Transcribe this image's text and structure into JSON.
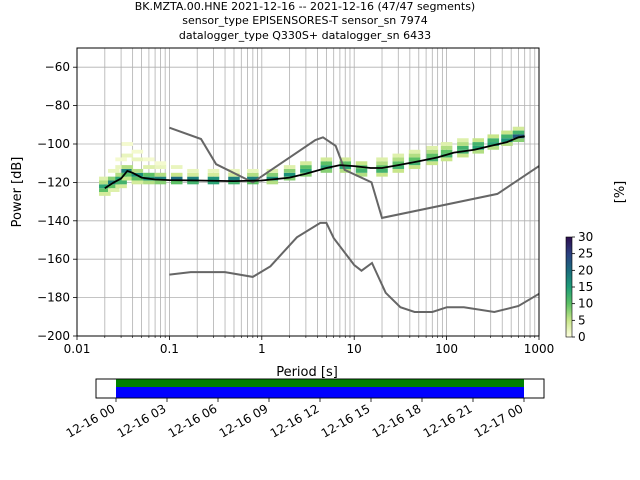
{
  "title": {
    "line1": "BK.MZTA.00.HNE   2021-12-16 -- 2021-12-16  (47/47 segments)",
    "line2": "sensor_type EPISENSORES-T sensor_sn 7974",
    "line3": "datalogger_type Q330S+ datalogger_sn 6433"
  },
  "chart_data": {
    "type": "heatmap",
    "xlabel": "Period [s]",
    "ylabel": "Power [dB]",
    "xscale": "log",
    "xlim": [
      0.01,
      1000
    ],
    "ylim": [
      -200,
      -50
    ],
    "grid": true,
    "x_ticks": [
      {
        "value": 0.01,
        "label": "0.01"
      },
      {
        "value": 0.1,
        "label": "0.1"
      },
      {
        "value": 1,
        "label": "1"
      },
      {
        "value": 10,
        "label": "10"
      },
      {
        "value": 100,
        "label": "100"
      },
      {
        "value": 1000,
        "label": "1000"
      }
    ],
    "y_ticks": [
      {
        "value": -60,
        "label": "−60"
      },
      {
        "value": -80,
        "label": "−80"
      },
      {
        "value": -100,
        "label": "−100"
      },
      {
        "value": -120,
        "label": "−120"
      },
      {
        "value": -140,
        "label": "−140"
      },
      {
        "value": -160,
        "label": "−160"
      },
      {
        "value": -180,
        "label": "−180"
      },
      {
        "value": -200,
        "label": "−200"
      }
    ],
    "colorbar": {
      "label": "[%]",
      "range": [
        0,
        30
      ],
      "ticks": [
        {
          "value": 0,
          "label": "0"
        },
        {
          "value": 5,
          "label": "5"
        },
        {
          "value": 10,
          "label": "10"
        },
        {
          "value": 15,
          "label": "15"
        },
        {
          "value": 20,
          "label": "20"
        },
        {
          "value": 25,
          "label": "25"
        },
        {
          "value": 30,
          "label": "30"
        }
      ],
      "colors": [
        "#ffffe0",
        "#c8e68a",
        "#5cc065",
        "#1e9c78",
        "#1b6b7d",
        "#2b3f80",
        "#2d0e4e"
      ]
    },
    "noise_models": {
      "color": "#666666",
      "high": [
        [
          0.1,
          -91.5
        ],
        [
          0.22,
          -97.4
        ],
        [
          0.32,
          -110.5
        ],
        [
          0.8,
          -120
        ],
        [
          3.8,
          -97.9
        ],
        [
          4.6,
          -96.5
        ],
        [
          6.3,
          -101
        ],
        [
          7.9,
          -113.5
        ],
        [
          15.4,
          -120
        ],
        [
          20,
          -138.5
        ],
        [
          354.8,
          -126
        ],
        [
          1000,
          -111.5
        ]
      ],
      "low": [
        [
          0.1,
          -168
        ],
        [
          0.17,
          -166.7
        ],
        [
          0.4,
          -166.7
        ],
        [
          0.8,
          -169.2
        ],
        [
          1.24,
          -163.7
        ],
        [
          2.4,
          -148.6
        ],
        [
          4.3,
          -141.1
        ],
        [
          5,
          -141.1
        ],
        [
          6,
          -149
        ],
        [
          10,
          -163
        ],
        [
          12,
          -166
        ],
        [
          15.6,
          -162
        ],
        [
          21.9,
          -177.5
        ],
        [
          31.6,
          -185
        ],
        [
          45,
          -187.5
        ],
        [
          70,
          -187.5
        ],
        [
          101,
          -185
        ],
        [
          154,
          -185
        ],
        [
          328,
          -187.5
        ],
        [
          600,
          -184.4
        ],
        [
          1000,
          -178
        ]
      ]
    },
    "median_line": {
      "color": "#000000",
      "points": [
        [
          0.02,
          -123
        ],
        [
          0.025,
          -120
        ],
        [
          0.03,
          -118
        ],
        [
          0.035,
          -114
        ],
        [
          0.04,
          -115
        ],
        [
          0.05,
          -117.5
        ],
        [
          0.07,
          -118.5
        ],
        [
          0.1,
          -118.8
        ],
        [
          0.2,
          -119
        ],
        [
          0.5,
          -119.3
        ],
        [
          1,
          -119
        ],
        [
          2,
          -117.5
        ],
        [
          3,
          -115.5
        ],
        [
          5,
          -112.5
        ],
        [
          7,
          -111
        ],
        [
          10,
          -111.5
        ],
        [
          15,
          -112.5
        ],
        [
          20,
          -112.5
        ],
        [
          30,
          -111
        ],
        [
          50,
          -109
        ],
        [
          80,
          -107
        ],
        [
          120,
          -104.5
        ],
        [
          200,
          -103
        ],
        [
          300,
          -101
        ],
        [
          450,
          -99
        ],
        [
          600,
          -96.5
        ],
        [
          700,
          -96
        ]
      ]
    },
    "histogram_columns": [
      {
        "period": 0.02,
        "bins": [
          [
            -126,
            4
          ],
          [
            -124,
            10
          ],
          [
            -122,
            14
          ],
          [
            -120,
            6
          ],
          [
            -118,
            3
          ]
        ]
      },
      {
        "period": 0.025,
        "bins": [
          [
            -124,
            3
          ],
          [
            -122,
            10
          ],
          [
            -120,
            18
          ],
          [
            -118,
            8
          ],
          [
            -114,
            2
          ]
        ]
      },
      {
        "period": 0.03,
        "bins": [
          [
            -122,
            4
          ],
          [
            -120,
            12
          ],
          [
            -118,
            14
          ],
          [
            -116,
            6
          ],
          [
            -112,
            2
          ],
          [
            -108,
            1
          ]
        ]
      },
      {
        "period": 0.035,
        "bins": [
          [
            -118,
            5
          ],
          [
            -116,
            10
          ],
          [
            -114,
            18
          ],
          [
            -112,
            6
          ],
          [
            -106,
            2
          ],
          [
            -100,
            1
          ]
        ]
      },
      {
        "period": 0.045,
        "bins": [
          [
            -120,
            4
          ],
          [
            -118,
            10
          ],
          [
            -116,
            16
          ],
          [
            -114,
            6
          ],
          [
            -108,
            2
          ],
          [
            -104,
            1
          ]
        ]
      },
      {
        "period": 0.06,
        "bins": [
          [
            -120,
            6
          ],
          [
            -118,
            16
          ],
          [
            -116,
            10
          ],
          [
            -112,
            3
          ],
          [
            -108,
            1
          ]
        ]
      },
      {
        "period": 0.08,
        "bins": [
          [
            -120,
            8
          ],
          [
            -118,
            18
          ],
          [
            -116,
            6
          ],
          [
            -112,
            2
          ],
          [
            -110,
            1
          ]
        ]
      },
      {
        "period": 0.12,
        "bins": [
          [
            -120,
            10
          ],
          [
            -118,
            20
          ],
          [
            -116,
            5
          ],
          [
            -112,
            2
          ]
        ]
      },
      {
        "period": 0.18,
        "bins": [
          [
            -120,
            12
          ],
          [
            -118,
            18
          ],
          [
            -116,
            4
          ],
          [
            -114,
            2
          ]
        ]
      },
      {
        "period": 0.3,
        "bins": [
          [
            -120,
            14
          ],
          [
            -118,
            16
          ],
          [
            -116,
            4
          ],
          [
            -114,
            2
          ]
        ]
      },
      {
        "period": 0.5,
        "bins": [
          [
            -120,
            12
          ],
          [
            -118,
            18
          ],
          [
            -116,
            4
          ],
          [
            -114,
            2
          ]
        ]
      },
      {
        "period": 0.8,
        "bins": [
          [
            -120,
            10
          ],
          [
            -118,
            18
          ],
          [
            -116,
            6
          ],
          [
            -114,
            2
          ]
        ]
      },
      {
        "period": 1.3,
        "bins": [
          [
            -120,
            6
          ],
          [
            -118,
            16
          ],
          [
            -116,
            8
          ],
          [
            -114,
            3
          ]
        ]
      },
      {
        "period": 2,
        "bins": [
          [
            -118,
            8
          ],
          [
            -116,
            16
          ],
          [
            -114,
            8
          ],
          [
            -112,
            3
          ]
        ]
      },
      {
        "period": 3,
        "bins": [
          [
            -116,
            8
          ],
          [
            -114,
            14
          ],
          [
            -112,
            10
          ],
          [
            -110,
            4
          ]
        ]
      },
      {
        "period": 5,
        "bins": [
          [
            -114,
            8
          ],
          [
            -112,
            14
          ],
          [
            -110,
            10
          ],
          [
            -108,
            4
          ]
        ]
      },
      {
        "period": 8,
        "bins": [
          [
            -114,
            6
          ],
          [
            -112,
            14
          ],
          [
            -110,
            10
          ],
          [
            -108,
            4
          ]
        ]
      },
      {
        "period": 12,
        "bins": [
          [
            -116,
            6
          ],
          [
            -114,
            12
          ],
          [
            -112,
            10
          ],
          [
            -110,
            5
          ]
        ]
      },
      {
        "period": 20,
        "bins": [
          [
            -116,
            5
          ],
          [
            -114,
            12
          ],
          [
            -112,
            10
          ],
          [
            -110,
            6
          ],
          [
            -108,
            3
          ]
        ]
      },
      {
        "period": 30,
        "bins": [
          [
            -114,
            5
          ],
          [
            -112,
            12
          ],
          [
            -110,
            10
          ],
          [
            -108,
            6
          ],
          [
            -106,
            3
          ]
        ]
      },
      {
        "period": 45,
        "bins": [
          [
            -112,
            5
          ],
          [
            -110,
            12
          ],
          [
            -108,
            10
          ],
          [
            -106,
            6
          ],
          [
            -104,
            3
          ]
        ]
      },
      {
        "period": 70,
        "bins": [
          [
            -110,
            5
          ],
          [
            -108,
            12
          ],
          [
            -106,
            10
          ],
          [
            -104,
            6
          ],
          [
            -102,
            3
          ]
        ]
      },
      {
        "period": 100,
        "bins": [
          [
            -108,
            5
          ],
          [
            -106,
            12
          ],
          [
            -104,
            10
          ],
          [
            -102,
            6
          ],
          [
            -100,
            3
          ]
        ]
      },
      {
        "period": 150,
        "bins": [
          [
            -106,
            5
          ],
          [
            -104,
            12
          ],
          [
            -102,
            12
          ],
          [
            -100,
            6
          ],
          [
            -98,
            3
          ]
        ]
      },
      {
        "period": 220,
        "bins": [
          [
            -104,
            6
          ],
          [
            -102,
            14
          ],
          [
            -100,
            12
          ],
          [
            -98,
            5
          ]
        ]
      },
      {
        "period": 320,
        "bins": [
          [
            -102,
            6
          ],
          [
            -100,
            14
          ],
          [
            -98,
            12
          ],
          [
            -96,
            5
          ]
        ]
      },
      {
        "period": 450,
        "bins": [
          [
            -100,
            6
          ],
          [
            -98,
            16
          ],
          [
            -96,
            12
          ],
          [
            -94,
            5
          ]
        ]
      },
      {
        "period": 600,
        "bins": [
          [
            -98,
            8
          ],
          [
            -96,
            22
          ],
          [
            -94,
            12
          ],
          [
            -92,
            4
          ]
        ]
      }
    ]
  },
  "timeline": {
    "x_ticks": [
      "12-16 00",
      "12-16 03",
      "12-16 06",
      "12-16 09",
      "12-16 12",
      "12-16 15",
      "12-16 18",
      "12-16 21",
      "12-17 00"
    ],
    "colors": {
      "top": "#008000",
      "bottom": "#0000ff"
    }
  }
}
